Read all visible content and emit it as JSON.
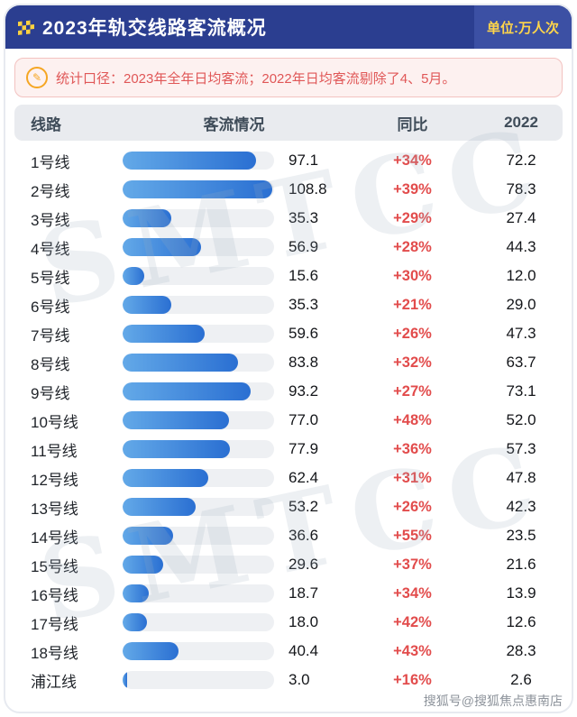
{
  "header": {
    "title": "2023年轨交线路客流概况",
    "unit": "单位:万人次"
  },
  "note": {
    "text": "统计口径：2023年全年日均客流；2022年日均客流剔除了4、5月。"
  },
  "table": {
    "columns": [
      "线路",
      "客流情况",
      "同比",
      "2022"
    ]
  },
  "chart_data": {
    "type": "bar",
    "title": "2023年轨交线路客流概况",
    "unit": "万人次",
    "xmax": 110,
    "categories": [
      "1号线",
      "2号线",
      "3号线",
      "4号线",
      "5号线",
      "6号线",
      "7号线",
      "8号线",
      "9号线",
      "10号线",
      "11号线",
      "12号线",
      "13号线",
      "14号线",
      "15号线",
      "16号线",
      "17号线",
      "18号线",
      "浦江线"
    ],
    "series": [
      {
        "name": "2023年日均客流",
        "values": [
          97.1,
          108.8,
          35.3,
          56.9,
          15.6,
          35.3,
          59.6,
          83.8,
          93.2,
          77.0,
          77.9,
          62.4,
          53.2,
          36.6,
          29.6,
          18.7,
          18.0,
          40.4,
          3.0
        ]
      },
      {
        "name": "同比",
        "values": [
          "+34%",
          "+39%",
          "+29%",
          "+28%",
          "+30%",
          "+21%",
          "+26%",
          "+32%",
          "+27%",
          "+48%",
          "+36%",
          "+31%",
          "+26%",
          "+55%",
          "+37%",
          "+34%",
          "+42%",
          "+43%",
          "+16%"
        ]
      },
      {
        "name": "2022年日均客流",
        "values": [
          72.2,
          78.3,
          27.4,
          44.3,
          12.0,
          29.0,
          47.3,
          63.7,
          73.1,
          52.0,
          57.3,
          47.8,
          42.3,
          23.5,
          21.6,
          13.9,
          12.6,
          28.3,
          2.6
        ]
      }
    ],
    "legend_position": "none",
    "grid": false
  },
  "watermarks": {
    "diagonal": "SMTCC",
    "credit": "搜狐号@搜狐焦点惠南店"
  },
  "colors": {
    "header_bg": "#2b3e90",
    "unit_text": "#ffd54a",
    "bar_start": "#63a9e8",
    "bar_end": "#2a6fd2",
    "yoy_red": "#e24c4c",
    "note_text": "#e05757"
  }
}
